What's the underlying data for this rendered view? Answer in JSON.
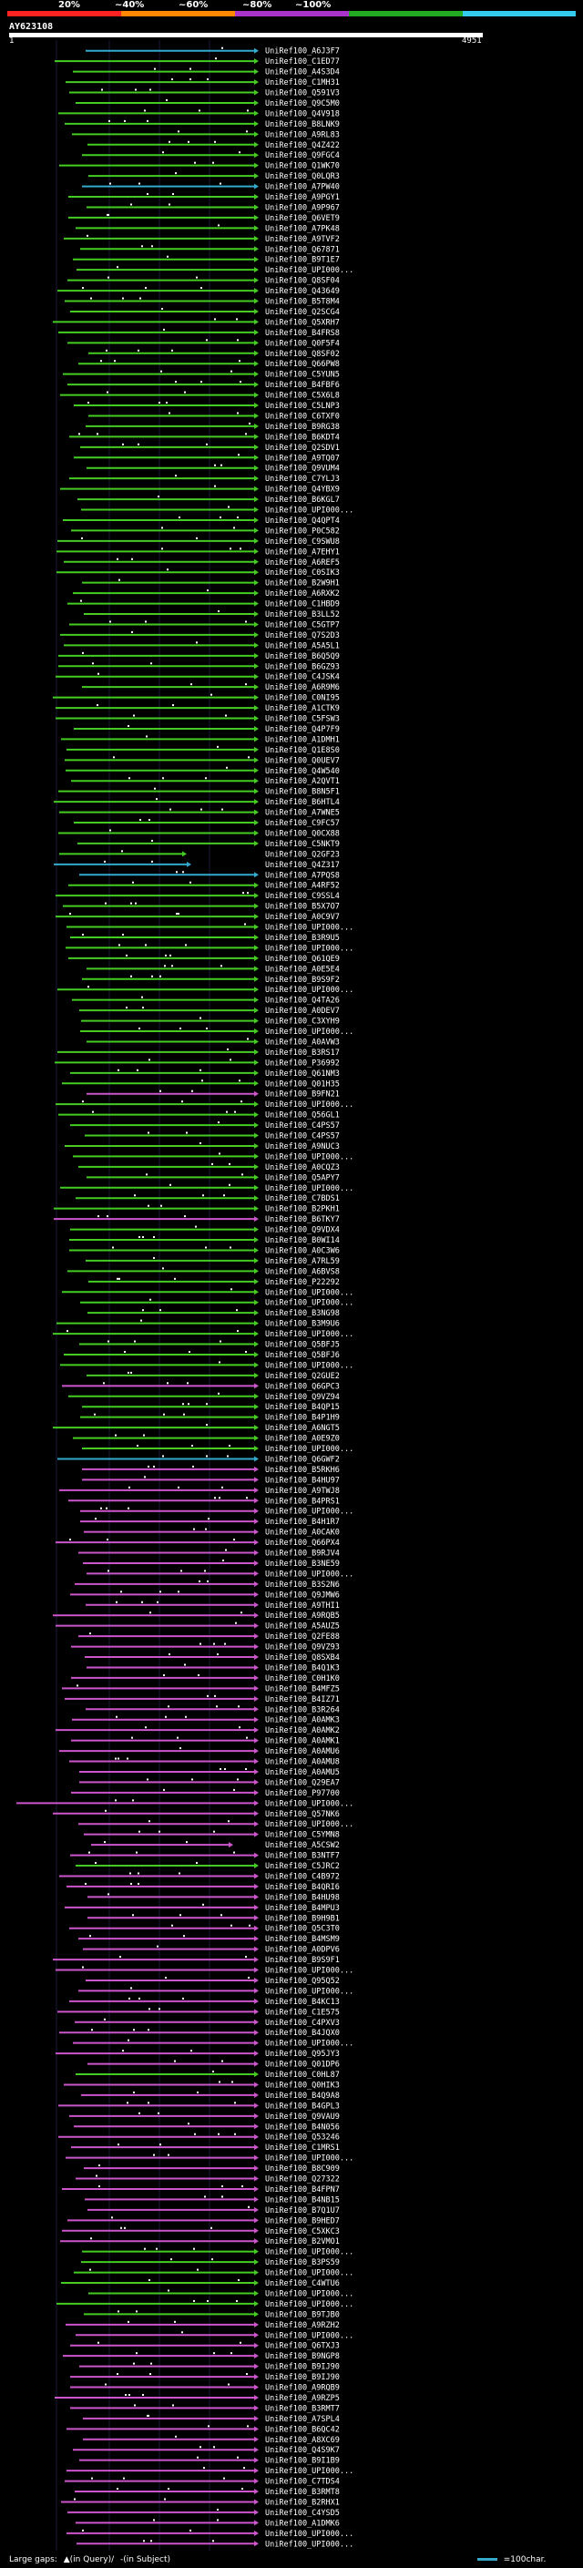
{
  "scale": {
    "labels": [
      "20%",
      "~40%",
      "~60%",
      "~80%",
      "~100%"
    ],
    "colors": [
      "#ff2222",
      "#ff8800",
      "#aa33cc",
      "#22aa22",
      "#33ccee"
    ]
  },
  "query": {
    "title": "AY623108",
    "start": "1",
    "end": "4951"
  },
  "colors": {
    "green": "#44cc22",
    "magenta": "#cc55cc",
    "cyan": "#33aacc",
    "dot": "#ffffff"
  },
  "hits": [
    {
      "label": "UniRef100_A6J3F7",
      "color": "cyan"
    },
    {
      "label": "UniRef100_C1ED77",
      "color": "green"
    },
    {
      "label": "UniRef100_A4S3D4",
      "color": "green"
    },
    {
      "label": "UniRef100_C1MH31",
      "color": "green"
    },
    {
      "label": "UniRef100_Q591V3",
      "color": "green"
    },
    {
      "label": "UniRef100_Q9C5M0",
      "color": "green"
    },
    {
      "label": "UniRef100_Q4V918",
      "color": "green"
    },
    {
      "label": "UniRef100_B8LNK9",
      "color": "green"
    },
    {
      "label": "UniRef100_A9RL83",
      "color": "green"
    },
    {
      "label": "UniRef100_Q4Z422",
      "color": "green"
    },
    {
      "label": "UniRef100_Q9FGC4",
      "color": "green"
    },
    {
      "label": "UniRef100_Q1WK70",
      "color": "green"
    },
    {
      "label": "UniRef100_Q0LQR3",
      "color": "green"
    },
    {
      "label": "UniRef100_A7PW40",
      "color": "cyan"
    },
    {
      "label": "UniRef100_A9PGY1",
      "color": "green"
    },
    {
      "label": "UniRef100_A9P967",
      "color": "green"
    },
    {
      "label": "UniRef100_Q6VET9",
      "color": "green"
    },
    {
      "label": "UniRef100_A7PK48",
      "color": "green"
    },
    {
      "label": "UniRef100_A9TVF2",
      "color": "green"
    },
    {
      "label": "UniRef100_Q67871",
      "color": "green"
    },
    {
      "label": "UniRef100_B9T1E7",
      "color": "green"
    },
    {
      "label": "UniRef100_UPI000...",
      "color": "green"
    },
    {
      "label": "UniRef100_Q8SF04",
      "color": "green"
    },
    {
      "label": "UniRef100_Q43649",
      "color": "green"
    },
    {
      "label": "UniRef100_B5T8M4",
      "color": "green"
    },
    {
      "label": "UniRef100_Q2SCG4",
      "color": "green"
    },
    {
      "label": "UniRef100_Q5XRH7",
      "color": "green"
    },
    {
      "label": "UniRef100_B4FRS8",
      "color": "green"
    },
    {
      "label": "UniRef100_Q0F5F4",
      "color": "green"
    },
    {
      "label": "UniRef100_Q8SF02",
      "color": "green"
    },
    {
      "label": "UniRef100_Q66PW8",
      "color": "green"
    },
    {
      "label": "UniRef100_C5YUN5",
      "color": "green"
    },
    {
      "label": "UniRef100_B4FBF6",
      "color": "green"
    },
    {
      "label": "UniRef100_C5X6L8",
      "color": "green"
    },
    {
      "label": "UniRef100_C5LNP3",
      "color": "green"
    },
    {
      "label": "UniRef100_C6TXF0",
      "color": "green"
    },
    {
      "label": "UniRef100_B9RG38",
      "color": "green"
    },
    {
      "label": "UniRef100_B6KDT4",
      "color": "green"
    },
    {
      "label": "UniRef100_Q2SDV1",
      "color": "green"
    },
    {
      "label": "UniRef100_A9TQ07",
      "color": "green"
    },
    {
      "label": "UniRef100_Q9VUM4",
      "color": "green"
    },
    {
      "label": "UniRef100_C7YLJ3",
      "color": "green"
    },
    {
      "label": "UniRef100_Q4YBX9",
      "color": "green"
    },
    {
      "label": "UniRef100_B6KGL7",
      "color": "green"
    },
    {
      "label": "UniRef100_UPI000...",
      "color": "green"
    },
    {
      "label": "UniRef100_Q4QPT4",
      "color": "green"
    },
    {
      "label": "UniRef100_P0C582",
      "color": "green"
    },
    {
      "label": "UniRef100_C9SWU8",
      "color": "green"
    },
    {
      "label": "UniRef100_A7EHY1",
      "color": "green"
    },
    {
      "label": "UniRef100_A6REF5",
      "color": "green"
    },
    {
      "label": "UniRef100_C0SIK3",
      "color": "green"
    },
    {
      "label": "UniRef100_B2W9H1",
      "color": "green"
    },
    {
      "label": "UniRef100_A6RXK2",
      "color": "green"
    },
    {
      "label": "UniRef100_C1HBD9",
      "color": "green"
    },
    {
      "label": "UniRef100_B3LL52",
      "color": "green"
    },
    {
      "label": "UniRef100_C5GTP7",
      "color": "green"
    },
    {
      "label": "UniRef100_Q7S2D3",
      "color": "green"
    },
    {
      "label": "UniRef100_A5A5L1",
      "color": "green"
    },
    {
      "label": "UniRef100_B6Q5Q9",
      "color": "green"
    },
    {
      "label": "UniRef100_B6GZ93",
      "color": "green"
    },
    {
      "label": "UniRef100_C4JSK4",
      "color": "green"
    },
    {
      "label": "UniRef100_A6R9M6",
      "color": "green"
    },
    {
      "label": "UniRef100_C0NI95",
      "color": "green"
    },
    {
      "label": "UniRef100_A1CTK9",
      "color": "green"
    },
    {
      "label": "UniRef100_C5FSW3",
      "color": "green"
    },
    {
      "label": "UniRef100_Q4P7F9",
      "color": "green"
    },
    {
      "label": "UniRef100_A1DMH1",
      "color": "green"
    },
    {
      "label": "UniRef100_Q1E8S0",
      "color": "green"
    },
    {
      "label": "UniRef100_Q0UEV7",
      "color": "green"
    },
    {
      "label": "UniRef100_Q4W540",
      "color": "green"
    },
    {
      "label": "UniRef100_A2QVT1",
      "color": "green"
    },
    {
      "label": "UniRef100_B8N5F1",
      "color": "green"
    },
    {
      "label": "UniRef100_B6HTL4",
      "color": "green"
    },
    {
      "label": "UniRef100_A7WNE5",
      "color": "green"
    },
    {
      "label": "UniRef100_C9FC57",
      "color": "green"
    },
    {
      "label": "UniRef100_Q0CX88",
      "color": "green"
    },
    {
      "label": "UniRef100_C5NKT9",
      "color": "green"
    },
    {
      "label": "UniRef100_Q2GF23",
      "color": "green"
    },
    {
      "label": "UniRef100_Q4Z317",
      "color": "cyan"
    },
    {
      "label": "UniRef100_A7PQS8",
      "color": "cyan"
    },
    {
      "label": "UniRef100_A4RF52",
      "color": "green"
    },
    {
      "label": "UniRef100_C9SSL4",
      "color": "green"
    },
    {
      "label": "UniRef100_B5X7O7",
      "color": "green"
    },
    {
      "label": "UniRef100_A0C9V7",
      "color": "green"
    },
    {
      "label": "UniRef100_UPI000...",
      "color": "green"
    },
    {
      "label": "UniRef100_B3R9U5",
      "color": "green"
    },
    {
      "label": "UniRef100_UPI000...",
      "color": "green"
    },
    {
      "label": "UniRef100_Q61QE9",
      "color": "green"
    },
    {
      "label": "UniRef100_A0E5E4",
      "color": "green"
    },
    {
      "label": "UniRef100_B9S9F2",
      "color": "green"
    },
    {
      "label": "UniRef100_UPI000...",
      "color": "green"
    },
    {
      "label": "UniRef100_Q4TA26",
      "color": "green"
    },
    {
      "label": "UniRef100_A0DEV7",
      "color": "green"
    },
    {
      "label": "UniRef100_C3XYH9",
      "color": "green"
    },
    {
      "label": "UniRef100_UPI000...",
      "color": "green"
    },
    {
      "label": "UniRef100_A0AVW3",
      "color": "green"
    },
    {
      "label": "UniRef100_B3RS17",
      "color": "green"
    },
    {
      "label": "UniRef100_P36992",
      "color": "green"
    },
    {
      "label": "UniRef100_Q61NM3",
      "color": "green"
    },
    {
      "label": "UniRef100_Q01H35",
      "color": "green"
    },
    {
      "label": "UniRef100_B9FN21",
      "color": "magenta"
    },
    {
      "label": "UniRef100_UPI000...",
      "color": "green"
    },
    {
      "label": "UniRef100_Q56GL1",
      "color": "green"
    },
    {
      "label": "UniRef100_C4PS57",
      "color": "green"
    },
    {
      "label": "UniRef100_C4PS57",
      "color": "green"
    },
    {
      "label": "UniRef100_A9NUC3",
      "color": "green"
    },
    {
      "label": "UniRef100_UPI000...",
      "color": "green"
    },
    {
      "label": "UniRef100_A0CQZ3",
      "color": "green"
    },
    {
      "label": "UniRef100_Q5APY7",
      "color": "green"
    },
    {
      "label": "UniRef100_UPI000...",
      "color": "green"
    },
    {
      "label": "UniRef100_C7BDS1",
      "color": "green"
    },
    {
      "label": "UniRef100_B2PKH1",
      "color": "green"
    },
    {
      "label": "UniRef100_B6TKY7",
      "color": "magenta"
    },
    {
      "label": "UniRef100_Q9VDX4",
      "color": "green"
    },
    {
      "label": "UniRef100_B0WI14",
      "color": "green"
    },
    {
      "label": "UniRef100_A0C3W6",
      "color": "green"
    },
    {
      "label": "UniRef100_A7RL59",
      "color": "green"
    },
    {
      "label": "UniRef100_A6BVS8",
      "color": "green"
    },
    {
      "label": "UniRef100_P22292",
      "color": "green"
    },
    {
      "label": "UniRef100_UPI000...",
      "color": "green"
    },
    {
      "label": "UniRef100_UPI000...",
      "color": "green"
    },
    {
      "label": "UniRef100_B3NG98",
      "color": "green"
    },
    {
      "label": "UniRef100_B3M9U6",
      "color": "green"
    },
    {
      "label": "UniRef100_UPI000...",
      "color": "green"
    },
    {
      "label": "UniRef100_Q5BFJ5",
      "color": "green"
    },
    {
      "label": "UniRef100_Q5BFJ6",
      "color": "green"
    },
    {
      "label": "UniRef100_UPI000...",
      "color": "green"
    },
    {
      "label": "UniRef100_Q2GUE2",
      "color": "green"
    },
    {
      "label": "UniRef100_Q6GPC3",
      "color": "magenta"
    },
    {
      "label": "UniRef100_Q9VZ94",
      "color": "green"
    },
    {
      "label": "UniRef100_B4QP15",
      "color": "green"
    },
    {
      "label": "UniRef100_B4P1H9",
      "color": "green"
    },
    {
      "label": "UniRef100_A6NGT5",
      "color": "green"
    },
    {
      "label": "UniRef100_A0E9Z0",
      "color": "green"
    },
    {
      "label": "UniRef100_UPI000...",
      "color": "green"
    },
    {
      "label": "UniRef100_Q6GWF2",
      "color": "cyan"
    },
    {
      "label": "UniRef100_B5RKH6",
      "color": "magenta"
    },
    {
      "label": "UniRef100_B4HU97",
      "color": "magenta"
    },
    {
      "label": "UniRef100_A9TWJ8",
      "color": "magenta"
    },
    {
      "label": "UniRef100_B4PRS1",
      "color": "magenta"
    },
    {
      "label": "UniRef100_UPI000...",
      "color": "magenta"
    },
    {
      "label": "UniRef100_B4H1R7",
      "color": "magenta"
    },
    {
      "label": "UniRef100_A0CAK0",
      "color": "magenta"
    },
    {
      "label": "UniRef100_Q66PX4",
      "color": "magenta"
    },
    {
      "label": "UniRef100_B9RJV4",
      "color": "magenta"
    },
    {
      "label": "UniRef100_B3NE59",
      "color": "magenta"
    },
    {
      "label": "UniRef100_UPI000...",
      "color": "magenta"
    },
    {
      "label": "UniRef100_B3S2N6",
      "color": "magenta"
    },
    {
      "label": "UniRef100_Q9JMW6",
      "color": "magenta"
    },
    {
      "label": "UniRef100_A9THI1",
      "color": "magenta"
    },
    {
      "label": "UniRef100_A9RQB5",
      "color": "magenta"
    },
    {
      "label": "UniRef100_A5AUZ5",
      "color": "magenta"
    },
    {
      "label": "UniRef100_Q2FE88",
      "color": "magenta"
    },
    {
      "label": "UniRef100_Q9VZ93",
      "color": "magenta"
    },
    {
      "label": "UniRef100_Q8SXB4",
      "color": "magenta"
    },
    {
      "label": "UniRef100_B4Q1K3",
      "color": "magenta"
    },
    {
      "label": "UniRef100_C0H1K0",
      "color": "magenta"
    },
    {
      "label": "UniRef100_B4MFZ5",
      "color": "magenta"
    },
    {
      "label": "UniRef100_B4IZ71",
      "color": "magenta"
    },
    {
      "label": "UniRef100_B3R264",
      "color": "magenta"
    },
    {
      "label": "UniRef100_A0AMK3",
      "color": "magenta"
    },
    {
      "label": "UniRef100_A0AMK2",
      "color": "magenta"
    },
    {
      "label": "UniRef100_A0AMK1",
      "color": "magenta"
    },
    {
      "label": "UniRef100_A0AMU6",
      "color": "magenta"
    },
    {
      "label": "UniRef100_A0AMU8",
      "color": "magenta"
    },
    {
      "label": "UniRef100_A0AMU5",
      "color": "magenta"
    },
    {
      "label": "UniRef100_Q29EA7",
      "color": "magenta"
    },
    {
      "label": "UniRef100_P97700",
      "color": "magenta"
    },
    {
      "label": "UniRef100_UPI000...",
      "color": "magenta"
    },
    {
      "label": "UniRef100_Q57NK6",
      "color": "magenta"
    },
    {
      "label": "UniRef100_UPI000...",
      "color": "magenta"
    },
    {
      "label": "UniRef100_C5YMN8",
      "color": "magenta"
    },
    {
      "label": "UniRef100_A5CSW2",
      "color": "magenta"
    },
    {
      "label": "UniRef100_B3NTF7",
      "color": "magenta"
    },
    {
      "label": "UniRef100_C5JRC2",
      "color": "green"
    },
    {
      "label": "UniRef100_C4B972",
      "color": "magenta"
    },
    {
      "label": "UniRef100_B4QRI6",
      "color": "magenta"
    },
    {
      "label": "UniRef100_B4HU98",
      "color": "magenta"
    },
    {
      "label": "UniRef100_B4MPU3",
      "color": "magenta"
    },
    {
      "label": "UniRef100_B9H9B1",
      "color": "magenta"
    },
    {
      "label": "UniRef100_Q5C3T0",
      "color": "magenta"
    },
    {
      "label": "UniRef100_B4MSM9",
      "color": "magenta"
    },
    {
      "label": "UniRef100_A0DPV6",
      "color": "magenta"
    },
    {
      "label": "UniRef100_B9S9F1",
      "color": "magenta"
    },
    {
      "label": "UniRef100_UPI000...",
      "color": "magenta"
    },
    {
      "label": "UniRef100_Q95Q52",
      "color": "magenta"
    },
    {
      "label": "UniRef100_UPI000...",
      "color": "magenta"
    },
    {
      "label": "UniRef100_B4KC13",
      "color": "magenta"
    },
    {
      "label": "UniRef100_C1E575",
      "color": "magenta"
    },
    {
      "label": "UniRef100_C4PXV3",
      "color": "magenta"
    },
    {
      "label": "UniRef100_B4JQX0",
      "color": "magenta"
    },
    {
      "label": "UniRef100_UPI000...",
      "color": "magenta"
    },
    {
      "label": "UniRef100_Q95JY3",
      "color": "magenta"
    },
    {
      "label": "UniRef100_Q01DP6",
      "color": "magenta"
    },
    {
      "label": "UniRef100_C0HL87",
      "color": "green"
    },
    {
      "label": "UniRef100_Q0HIK3",
      "color": "magenta"
    },
    {
      "label": "UniRef100_B4Q9A8",
      "color": "magenta"
    },
    {
      "label": "UniRef100_B4GPL3",
      "color": "magenta"
    },
    {
      "label": "UniRef100_Q9VAU9",
      "color": "magenta"
    },
    {
      "label": "UniRef100_B4N056",
      "color": "magenta"
    },
    {
      "label": "UniRef100_Q53246",
      "color": "magenta"
    },
    {
      "label": "UniRef100_C1MRS1",
      "color": "magenta"
    },
    {
      "label": "UniRef100_UPI000...",
      "color": "magenta"
    },
    {
      "label": "UniRef100_B8C909",
      "color": "magenta"
    },
    {
      "label": "UniRef100_Q27322",
      "color": "magenta"
    },
    {
      "label": "UniRef100_B4FPN7",
      "color": "magenta"
    },
    {
      "label": "UniRef100_B4NB15",
      "color": "magenta"
    },
    {
      "label": "UniRef100_B7Q1U7",
      "color": "magenta"
    },
    {
      "label": "UniRef100_B9HED7",
      "color": "magenta"
    },
    {
      "label": "UniRef100_C5XKC3",
      "color": "magenta"
    },
    {
      "label": "UniRef100_B2VMO1",
      "color": "magenta"
    },
    {
      "label": "UniRef100_UPI000...",
      "color": "green"
    },
    {
      "label": "UniRef100_B3PS59",
      "color": "green"
    },
    {
      "label": "UniRef100_UPI000...",
      "color": "green"
    },
    {
      "label": "UniRef100_C4WTU6",
      "color": "green"
    },
    {
      "label": "UniRef100_UPI000...",
      "color": "green"
    },
    {
      "label": "UniRef100_UPI000...",
      "color": "green"
    },
    {
      "label": "UniRef100_B9TJB0",
      "color": "green"
    },
    {
      "label": "UniRef100_A9RZH2",
      "color": "magenta"
    },
    {
      "label": "UniRef100_UPI000...",
      "color": "magenta"
    },
    {
      "label": "UniRef100_Q6TXJ3",
      "color": "magenta"
    },
    {
      "label": "UniRef100_B9NGP8",
      "color": "magenta"
    },
    {
      "label": "UniRef100_B9IJ90",
      "color": "magenta"
    },
    {
      "label": "UniRef100_B9IJ90",
      "color": "magenta"
    },
    {
      "label": "UniRef100_A9RQB9",
      "color": "magenta"
    },
    {
      "label": "UniRef100_A9RZP5",
      "color": "magenta"
    },
    {
      "label": "UniRef100_B3RMT7",
      "color": "magenta"
    },
    {
      "label": "UniRef100_A7SPL4",
      "color": "magenta"
    },
    {
      "label": "UniRef100_B6QC42",
      "color": "magenta"
    },
    {
      "label": "UniRef100_A8XC69",
      "color": "magenta"
    },
    {
      "label": "UniRef100_Q4S9K7",
      "color": "magenta"
    },
    {
      "label": "UniRef100_B9I1B9",
      "color": "magenta"
    },
    {
      "label": "UniRef100_UPI000...",
      "color": "magenta"
    },
    {
      "label": "UniRef100_C7TDS4",
      "color": "magenta"
    },
    {
      "label": "UniRef100_B3RMT8",
      "color": "magenta"
    },
    {
      "label": "UniRef100_B2RHX1",
      "color": "magenta"
    },
    {
      "label": "UniRef100_C4YSD5",
      "color": "magenta"
    },
    {
      "label": "UniRef100_A1DMK6",
      "color": "magenta"
    },
    {
      "label": "UniRef100_UPI000...",
      "color": "magenta"
    },
    {
      "label": "UniRef100_UPI000...",
      "color": "magenta"
    }
  ],
  "legend": {
    "prefix": "Large gaps:",
    "query_gap": "▲(in Query)/",
    "subject_gap": "-(in Subject)",
    "scale_label": "=100char."
  }
}
